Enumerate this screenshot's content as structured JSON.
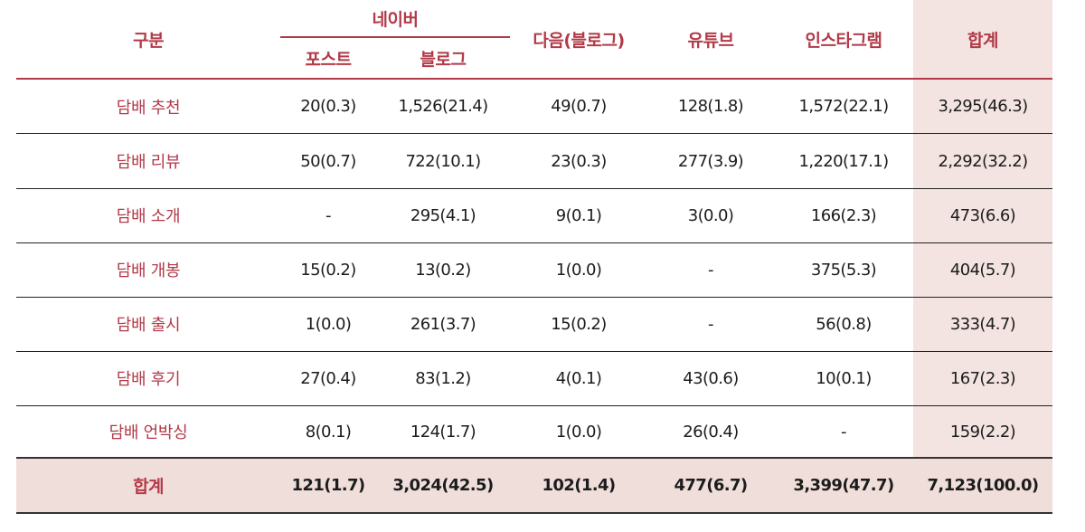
{
  "header": {
    "category": "구분",
    "naver": "네이버",
    "naver_post": "포스트",
    "naver_blog": "블로그",
    "daum": "다음(블로그)",
    "youtube": "유튜브",
    "instagram": "인스타그램",
    "total": "합계"
  },
  "rows": [
    {
      "label": "담배 추천",
      "values": [
        "20(0.3)",
        "1,526(21.4)",
        "49(0.7)",
        "128(1.8)",
        "1,572(22.1)",
        "3,295(46.3)"
      ]
    },
    {
      "label": "담배 리뷰",
      "values": [
        "50(0.7)",
        "722(10.1)",
        "23(0.3)",
        "277(3.9)",
        "1,220(17.1)",
        "2,292(32.2)"
      ]
    },
    {
      "label": "담배 소개",
      "values": [
        "-",
        "295(4.1)",
        "9(0.1)",
        "3(0.0)",
        "166(2.3)",
        "473(6.6)"
      ]
    },
    {
      "label": "담배 개봉",
      "values": [
        "15(0.2)",
        "13(0.2)",
        "1(0.0)",
        "-",
        "375(5.3)",
        "404(5.7)"
      ]
    },
    {
      "label": "담배 출시",
      "values": [
        "1(0.0)",
        "261(3.7)",
        "15(0.2)",
        "-",
        "56(0.8)",
        "333(4.7)"
      ]
    },
    {
      "label": "담배 후기",
      "values": [
        "27(0.4)",
        "83(1.2)",
        "4(0.1)",
        "43(0.6)",
        "10(0.1)",
        "167(2.3)"
      ]
    },
    {
      "label": "담배 언박싱",
      "values": [
        "8(0.1)",
        "124(1.7)",
        "1(0.0)",
        "26(0.4)",
        "-",
        "159(2.2)"
      ]
    }
  ],
  "total_row": {
    "label": "합계",
    "values": [
      "121(1.7)",
      "3,024(42.5)",
      "102(1.4)",
      "477(6.7)",
      "3,399(47.7)",
      "7,123(100.0)"
    ]
  },
  "colors": {
    "accent": "#b23a48",
    "total_fill": "#f3e3e1"
  }
}
